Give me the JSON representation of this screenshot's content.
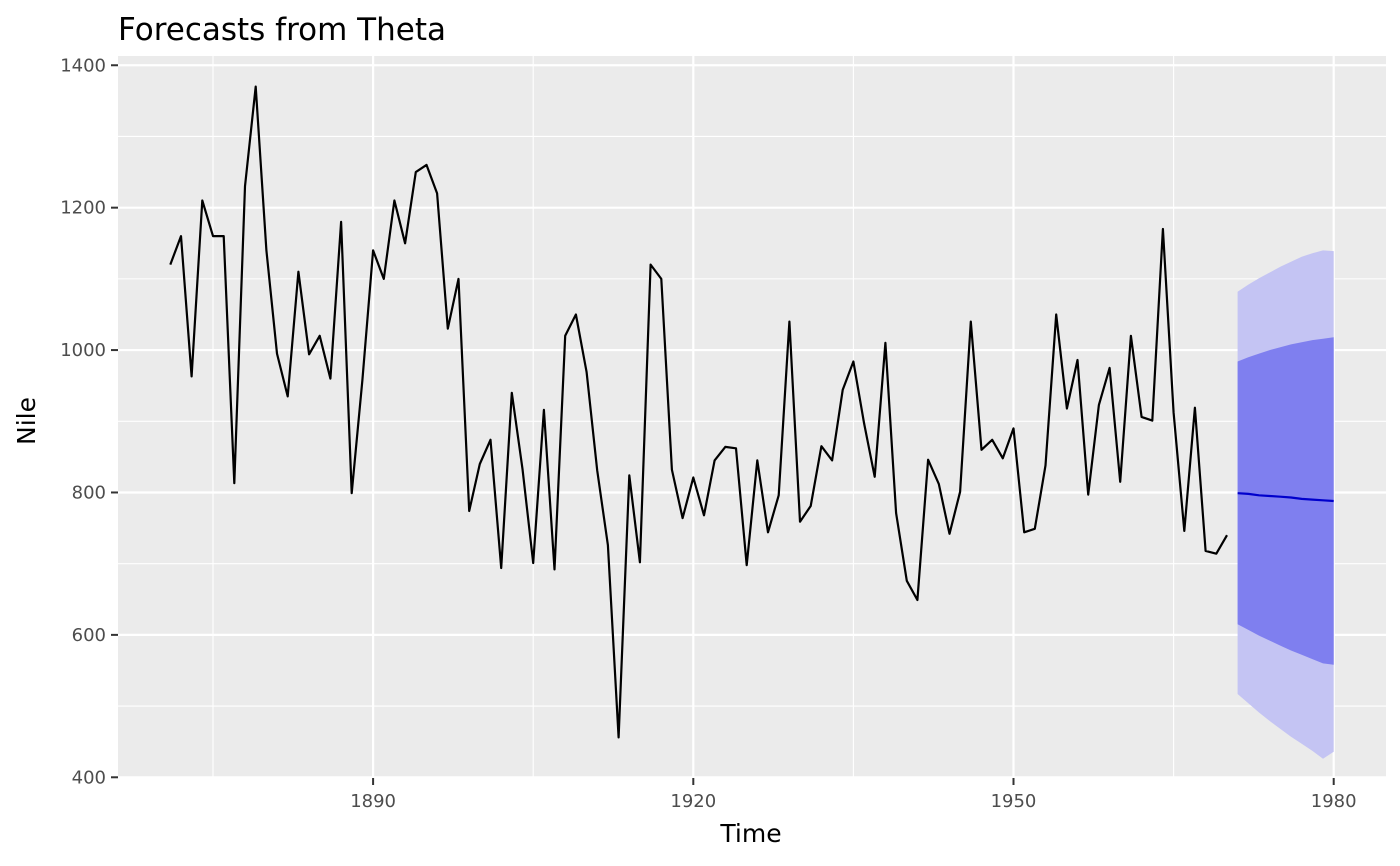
{
  "chart_data": {
    "type": "line",
    "title": "Forecasts from Theta",
    "xlabel": "Time",
    "ylabel": "Nile",
    "xlim": [
      1866.1,
      1984.9
    ],
    "ylim": [
      399,
      1413
    ],
    "x_ticks": [
      1890,
      1920,
      1950,
      1980
    ],
    "y_ticks": [
      400,
      600,
      800,
      1000,
      1200,
      1400
    ],
    "x_tick_labels": [
      "1890",
      "1920",
      "1950",
      "1980"
    ],
    "y_tick_labels": [
      "400",
      "600",
      "800",
      "1000",
      "1200",
      "1400"
    ],
    "grid": true,
    "legend": "none",
    "colors": {
      "panel": "#ebebeb",
      "grid": "#ffffff",
      "series": "#000000",
      "forecast": "#0000cc",
      "pi80": "#7f7fef",
      "pi95": "#c4c4f3"
    },
    "series": [
      {
        "x_start": 1871,
        "values": [
          1120,
          1160,
          963,
          1210,
          1160,
          1160,
          813,
          1230,
          1370,
          1140,
          995,
          935,
          1110,
          994,
          1020,
          960,
          1180,
          799,
          958,
          1140,
          1100,
          1210,
          1150,
          1250,
          1260,
          1220,
          1030,
          1100,
          774,
          840,
          874,
          694,
          940,
          833,
          701,
          916,
          692,
          1020,
          1050,
          969,
          831,
          726,
          456,
          824,
          702,
          1120,
          1100,
          832,
          764,
          821,
          768,
          845,
          864,
          862,
          698,
          845,
          744,
          796,
          1040,
          759,
          781,
          865,
          845,
          944,
          984,
          897,
          822,
          1010,
          771,
          676,
          649,
          846,
          812,
          742,
          801,
          1040,
          860,
          874,
          848,
          890,
          744,
          749,
          838,
          1050,
          918,
          986,
          797,
          923,
          975,
          815,
          1020,
          906,
          901,
          1170,
          912,
          746,
          919,
          718,
          714,
          740
        ]
      },
      {
        "x_start": 1971,
        "values": [
          799,
          798,
          796,
          795,
          794,
          793,
          791,
          790,
          789,
          788
        ]
      }
    ],
    "intervals": [
      {
        "level": 95,
        "lower": [
          517,
          504,
          491,
          479,
          468,
          457,
          447,
          437,
          426,
          436
        ],
        "upper": [
          1082,
          1092,
          1101,
          1109,
          1117,
          1124,
          1131,
          1136,
          1140,
          1139
        ]
      },
      {
        "level": 80,
        "lower": [
          615,
          607,
          599,
          592,
          585,
          578,
          572,
          566,
          560,
          558
        ],
        "upper": [
          984,
          990,
          995,
          1000,
          1004,
          1008,
          1011,
          1014,
          1016,
          1018
        ]
      }
    ]
  }
}
